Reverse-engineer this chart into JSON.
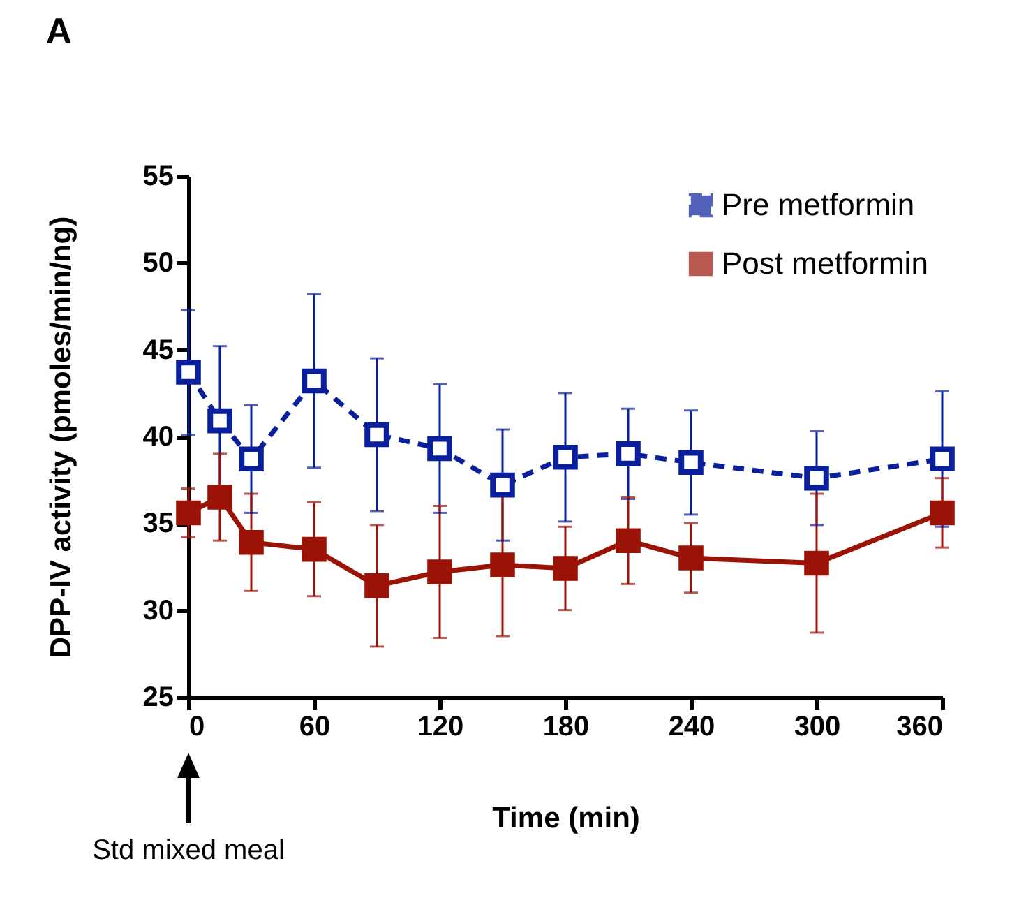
{
  "chart_data": {
    "type": "line",
    "title": "A",
    "xlabel": "Time (min)",
    "ylabel": "DPP-IV activity (pmoles/min/ng)",
    "x": [
      0,
      15,
      30,
      60,
      90,
      120,
      150,
      180,
      210,
      240,
      300,
      360
    ],
    "series": [
      {
        "name": "Pre metformin",
        "color": "#0a1f9c",
        "line_style": "dashed",
        "marker": "square",
        "values": [
          43.7,
          40.9,
          38.7,
          43.2,
          40.1,
          39.3,
          37.2,
          38.8,
          39.0,
          38.5,
          37.6,
          38.7
        ],
        "errors": [
          3.6,
          4.3,
          3.1,
          5.0,
          4.4,
          3.7,
          3.2,
          3.7,
          2.6,
          3.0,
          2.7,
          3.9
        ]
      },
      {
        "name": "Post metformin",
        "color": "#9b1306",
        "line_style": "solid",
        "marker": "square",
        "values": [
          35.6,
          36.5,
          33.9,
          33.5,
          31.4,
          32.2,
          32.6,
          32.4,
          34.0,
          33.0,
          32.7,
          35.6
        ],
        "errors": [
          1.4,
          2.5,
          2.8,
          2.7,
          3.5,
          3.8,
          4.1,
          2.4,
          2.5,
          2.0,
          4.0,
          2.0
        ]
      }
    ],
    "xlim": [
      0,
      360
    ],
    "xticks": [
      0,
      60,
      120,
      180,
      240,
      300,
      360
    ],
    "ylim": [
      25,
      55
    ],
    "yticks": [
      25,
      30,
      35,
      40,
      45,
      50,
      55
    ],
    "grid": false,
    "legend": "top right",
    "annotations": [
      "Std mixed meal"
    ]
  }
}
